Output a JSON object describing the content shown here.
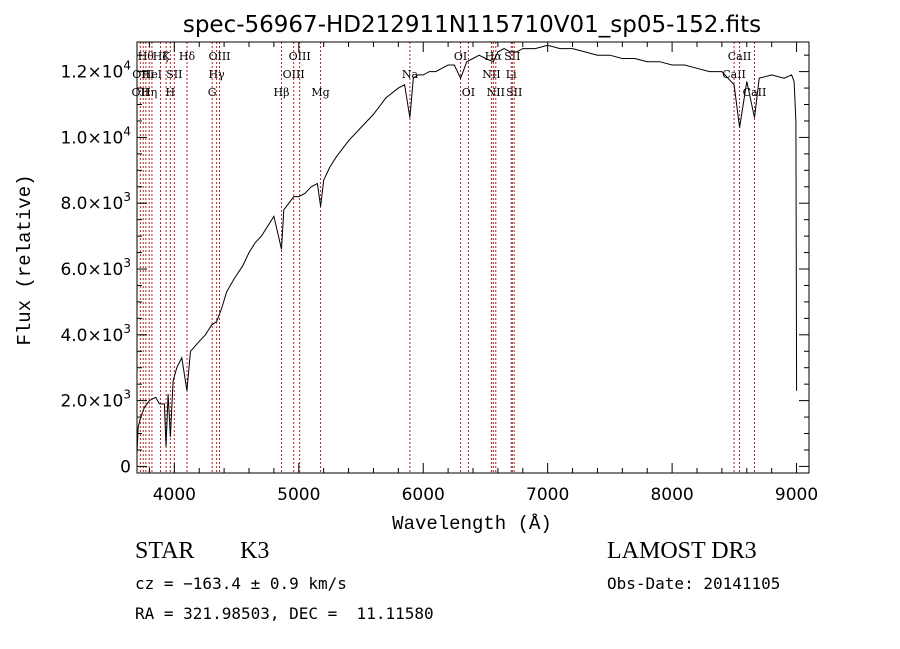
{
  "chart_data": {
    "type": "line",
    "title": "spec-56967-HD212911N115710V01_sp05-152.fits",
    "xlabel": "Wavelength (Å)",
    "ylabel": "Flux (relative)",
    "xlim": [
      3700,
      9100
    ],
    "ylim": [
      -200,
      12900
    ],
    "x_ticks": [
      4000,
      5000,
      6000,
      7000,
      8000,
      9000
    ],
    "y_ticks": [
      {
        "value": 0,
        "mantissa": "0",
        "exp": ""
      },
      {
        "value": 2000,
        "mantissa": "2.0×10",
        "exp": "3"
      },
      {
        "value": 4000,
        "mantissa": "4.0×10",
        "exp": "3"
      },
      {
        "value": 6000,
        "mantissa": "6.0×10",
        "exp": "3"
      },
      {
        "value": 8000,
        "mantissa": "8.0×10",
        "exp": "3"
      },
      {
        "value": 10000,
        "mantissa": "1.0×10",
        "exp": "4"
      },
      {
        "value": 12000,
        "mantissa": "1.2×10",
        "exp": "4"
      }
    ],
    "color": "#000000",
    "line_color": "#b22222",
    "series": [
      {
        "x": [
          3700,
          3710,
          3730,
          3760,
          3800,
          3850,
          3880,
          3920,
          3933,
          3950,
          3968,
          3990,
          4020,
          4060,
          4101,
          4130,
          4200,
          4250,
          4300,
          4340,
          4380,
          4420,
          4480,
          4550,
          4600,
          4650,
          4700,
          4750,
          4800,
          4861,
          4880,
          4920,
          4960,
          5000,
          5050,
          5100,
          5150,
          5175,
          5200,
          5250,
          5300,
          5400,
          5500,
          5600,
          5700,
          5800,
          5850,
          5893,
          5920,
          5960,
          6000,
          6050,
          6100,
          6150,
          6200,
          6250,
          6300,
          6350,
          6400,
          6450,
          6500,
          6563,
          6600,
          6650,
          6700,
          6750,
          6800,
          6900,
          7000,
          7100,
          7200,
          7300,
          7400,
          7500,
          7600,
          7700,
          7800,
          7900,
          8000,
          8100,
          8200,
          8300,
          8400,
          8498,
          8542,
          8600,
          8662,
          8700,
          8800,
          8900,
          8960,
          8980,
          8995,
          9000
        ],
        "y": [
          400,
          1200,
          1500,
          1800,
          2000,
          2100,
          1900,
          1900,
          600,
          2200,
          900,
          2600,
          3000,
          3300,
          2300,
          3500,
          3800,
          4000,
          4300,
          4400,
          4800,
          5300,
          5700,
          6100,
          6500,
          6800,
          7000,
          7300,
          7600,
          6600,
          7800,
          8000,
          8200,
          8200,
          8300,
          8500,
          8600,
          7900,
          8700,
          9100,
          9400,
          9900,
          10300,
          10700,
          11200,
          11500,
          11600,
          10600,
          11800,
          11900,
          11900,
          12000,
          12000,
          12100,
          12200,
          12200,
          11800,
          12300,
          12400,
          12500,
          12400,
          12300,
          12600,
          12700,
          12600,
          12600,
          12700,
          12700,
          12800,
          12700,
          12700,
          12600,
          12500,
          12500,
          12400,
          12400,
          12300,
          12300,
          12200,
          12200,
          12100,
          12000,
          12000,
          11600,
          10300,
          11700,
          10600,
          11800,
          11900,
          11800,
          11900,
          11700,
          10500,
          2300
        ]
      }
    ],
    "lines": [
      {
        "x": 3727,
        "labels": [
          "OII"
        ],
        "rows": [
          2
        ]
      },
      {
        "x": 3750,
        "labels": [
          "OIII"
        ],
        "rows": [
          1
        ]
      },
      {
        "x": 3771,
        "labels": [
          "Hθ"
        ],
        "rows": [
          0
        ]
      },
      {
        "x": 3798,
        "labels": [
          "Hη"
        ],
        "rows": [
          2
        ]
      },
      {
        "x": 3820,
        "labels": [
          "HeI"
        ],
        "rows": [
          1
        ]
      },
      {
        "x": 3889,
        "labels": [
          "Hζ"
        ],
        "rows": [
          0
        ]
      },
      {
        "x": 3934,
        "labels": [
          "K"
        ],
        "rows": [
          0
        ]
      },
      {
        "x": 3968,
        "labels": [
          "H"
        ],
        "rows": [
          2
        ]
      },
      {
        "x": 4000,
        "labels": [
          "SII"
        ],
        "rows": [
          1
        ]
      },
      {
        "x": 4102,
        "labels": [
          "Hδ"
        ],
        "rows": [
          0
        ]
      },
      {
        "x": 4304,
        "labels": [
          "G"
        ],
        "rows": [
          2
        ]
      },
      {
        "x": 4340,
        "labels": [
          "Hγ"
        ],
        "rows": [
          1
        ]
      },
      {
        "x": 4363,
        "labels": [
          "OIII"
        ],
        "rows": [
          0
        ]
      },
      {
        "x": 4861,
        "labels": [
          "Hβ"
        ],
        "rows": [
          2
        ]
      },
      {
        "x": 4959,
        "labels": [
          "OIII"
        ],
        "rows": [
          1
        ]
      },
      {
        "x": 5007,
        "labels": [
          "OIII"
        ],
        "rows": [
          0
        ]
      },
      {
        "x": 5175,
        "labels": [
          "Mg"
        ],
        "rows": [
          2
        ]
      },
      {
        "x": 5893,
        "labels": [
          "Na"
        ],
        "rows": [
          1
        ]
      },
      {
        "x": 6300,
        "labels": [
          "OI"
        ],
        "rows": [
          0
        ]
      },
      {
        "x": 6363,
        "labels": [
          "OI"
        ],
        "rows": [
          2
        ]
      },
      {
        "x": 6548,
        "labels": [
          "NII"
        ],
        "rows": [
          1
        ]
      },
      {
        "x": 6563,
        "labels": [
          "Hα"
        ],
        "rows": [
          0
        ]
      },
      {
        "x": 6583,
        "labels": [
          "NII"
        ],
        "rows": [
          2
        ]
      },
      {
        "x": 6707,
        "labels": [
          "Li"
        ],
        "rows": [
          1
        ]
      },
      {
        "x": 6716,
        "labels": [
          "SII"
        ],
        "rows": [
          0
        ]
      },
      {
        "x": 6731,
        "labels": [
          "SII"
        ],
        "rows": [
          2
        ]
      },
      {
        "x": 8498,
        "labels": [
          "CaII"
        ],
        "rows": [
          1
        ]
      },
      {
        "x": 8542,
        "labels": [
          "CaII"
        ],
        "rows": [
          0
        ]
      },
      {
        "x": 8662,
        "labels": [
          "CaII"
        ],
        "rows": [
          2
        ]
      }
    ]
  },
  "footer": {
    "class_label": "STAR",
    "subclass": "K3",
    "survey": "LAMOST DR3",
    "cz": "cz = −163.4 ± 0.9 km/s",
    "obs_date": "Obs-Date: 20141105",
    "radec": "RA = 321.98503, DEC =  11.11580"
  }
}
